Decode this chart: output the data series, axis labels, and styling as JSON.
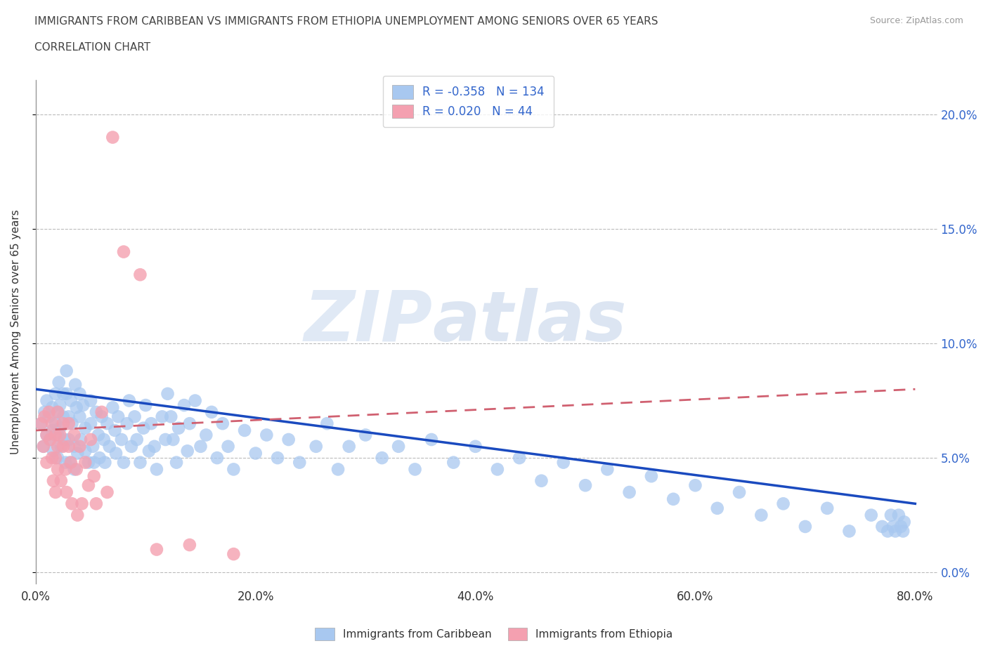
{
  "title_line1": "IMMIGRANTS FROM CARIBBEAN VS IMMIGRANTS FROM ETHIOPIA UNEMPLOYMENT AMONG SENIORS OVER 65 YEARS",
  "title_line2": "CORRELATION CHART",
  "source": "Source: ZipAtlas.com",
  "ylabel": "Unemployment Among Seniors over 65 years",
  "xlim": [
    0.0,
    0.82
  ],
  "ylim": [
    -0.005,
    0.215
  ],
  "xticks": [
    0.0,
    0.2,
    0.4,
    0.6,
    0.8
  ],
  "yticks": [
    0.0,
    0.05,
    0.1,
    0.15,
    0.2
  ],
  "ytick_labels_right": [
    "0.0%",
    "5.0%",
    "10.0%",
    "15.0%",
    "20.0%"
  ],
  "xtick_labels": [
    "0.0%",
    "20.0%",
    "40.0%",
    "60.0%",
    "80.0%"
  ],
  "caribbean_color": "#a8c8f0",
  "ethiopia_color": "#f4a0b0",
  "caribbean_R": -0.358,
  "caribbean_N": 134,
  "ethiopia_R": 0.02,
  "ethiopia_N": 44,
  "trend_blue": "#1a4abf",
  "trend_pink": "#d06070",
  "watermark_zip": "ZIP",
  "watermark_atlas": "atlas",
  "legend_bottom_labels": [
    "Immigrants from Caribbean",
    "Immigrants from Ethiopia"
  ],
  "caribbean_x": [
    0.005,
    0.007,
    0.008,
    0.01,
    0.01,
    0.012,
    0.013,
    0.015,
    0.015,
    0.016,
    0.018,
    0.018,
    0.02,
    0.02,
    0.02,
    0.021,
    0.022,
    0.022,
    0.023,
    0.025,
    0.025,
    0.026,
    0.027,
    0.028,
    0.028,
    0.03,
    0.03,
    0.031,
    0.032,
    0.033,
    0.035,
    0.035,
    0.036,
    0.037,
    0.038,
    0.04,
    0.04,
    0.041,
    0.043,
    0.045,
    0.045,
    0.048,
    0.05,
    0.05,
    0.052,
    0.053,
    0.055,
    0.057,
    0.058,
    0.06,
    0.062,
    0.063,
    0.065,
    0.067,
    0.07,
    0.072,
    0.073,
    0.075,
    0.078,
    0.08,
    0.083,
    0.085,
    0.087,
    0.09,
    0.092,
    0.095,
    0.098,
    0.1,
    0.103,
    0.105,
    0.108,
    0.11,
    0.115,
    0.118,
    0.12,
    0.123,
    0.125,
    0.128,
    0.13,
    0.135,
    0.138,
    0.14,
    0.145,
    0.15,
    0.155,
    0.16,
    0.165,
    0.17,
    0.175,
    0.18,
    0.19,
    0.2,
    0.21,
    0.22,
    0.23,
    0.24,
    0.255,
    0.265,
    0.275,
    0.285,
    0.3,
    0.315,
    0.33,
    0.345,
    0.36,
    0.38,
    0.4,
    0.42,
    0.44,
    0.46,
    0.48,
    0.5,
    0.52,
    0.54,
    0.56,
    0.58,
    0.6,
    0.62,
    0.64,
    0.66,
    0.68,
    0.7,
    0.72,
    0.74,
    0.76,
    0.77,
    0.775,
    0.778,
    0.78,
    0.782,
    0.785,
    0.787,
    0.789,
    0.79
  ],
  "caribbean_y": [
    0.065,
    0.055,
    0.07,
    0.06,
    0.075,
    0.068,
    0.058,
    0.072,
    0.062,
    0.053,
    0.078,
    0.065,
    0.07,
    0.06,
    0.05,
    0.083,
    0.073,
    0.063,
    0.055,
    0.078,
    0.068,
    0.058,
    0.048,
    0.088,
    0.078,
    0.068,
    0.058,
    0.048,
    0.075,
    0.065,
    0.055,
    0.045,
    0.082,
    0.072,
    0.052,
    0.078,
    0.068,
    0.058,
    0.073,
    0.063,
    0.053,
    0.048,
    0.075,
    0.065,
    0.055,
    0.048,
    0.07,
    0.06,
    0.05,
    0.068,
    0.058,
    0.048,
    0.065,
    0.055,
    0.072,
    0.062,
    0.052,
    0.068,
    0.058,
    0.048,
    0.065,
    0.075,
    0.055,
    0.068,
    0.058,
    0.048,
    0.063,
    0.073,
    0.053,
    0.065,
    0.055,
    0.045,
    0.068,
    0.058,
    0.078,
    0.068,
    0.058,
    0.048,
    0.063,
    0.073,
    0.053,
    0.065,
    0.075,
    0.055,
    0.06,
    0.07,
    0.05,
    0.065,
    0.055,
    0.045,
    0.062,
    0.052,
    0.06,
    0.05,
    0.058,
    0.048,
    0.055,
    0.065,
    0.045,
    0.055,
    0.06,
    0.05,
    0.055,
    0.045,
    0.058,
    0.048,
    0.055,
    0.045,
    0.05,
    0.04,
    0.048,
    0.038,
    0.045,
    0.035,
    0.042,
    0.032,
    0.038,
    0.028,
    0.035,
    0.025,
    0.03,
    0.02,
    0.028,
    0.018,
    0.025,
    0.02,
    0.018,
    0.025,
    0.02,
    0.018,
    0.025,
    0.02,
    0.018,
    0.022
  ],
  "ethiopia_x": [
    0.005,
    0.007,
    0.008,
    0.01,
    0.01,
    0.012,
    0.013,
    0.015,
    0.015,
    0.016,
    0.018,
    0.018,
    0.018,
    0.02,
    0.02,
    0.02,
    0.022,
    0.023,
    0.025,
    0.025,
    0.027,
    0.028,
    0.03,
    0.03,
    0.032,
    0.033,
    0.035,
    0.037,
    0.038,
    0.04,
    0.042,
    0.045,
    0.048,
    0.05,
    0.053,
    0.055,
    0.06,
    0.065,
    0.07,
    0.08,
    0.095,
    0.11,
    0.14,
    0.18
  ],
  "ethiopia_y": [
    0.065,
    0.055,
    0.068,
    0.06,
    0.048,
    0.07,
    0.058,
    0.065,
    0.05,
    0.04,
    0.06,
    0.05,
    0.035,
    0.055,
    0.07,
    0.045,
    0.06,
    0.04,
    0.055,
    0.065,
    0.045,
    0.035,
    0.055,
    0.065,
    0.048,
    0.03,
    0.06,
    0.045,
    0.025,
    0.055,
    0.03,
    0.048,
    0.038,
    0.058,
    0.042,
    0.03,
    0.07,
    0.035,
    0.19,
    0.14,
    0.13,
    0.01,
    0.012,
    0.008
  ]
}
